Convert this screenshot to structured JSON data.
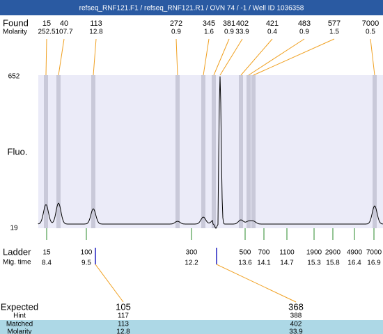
{
  "title": "refseq_RNF121.F1 / refseq_RNF121.R1 / OVN 74 / -1 / Well ID 1036358",
  "found": {
    "label": "Found",
    "sublabel": "Molarity",
    "peaks": [
      {
        "size": 15,
        "molarity": 252.5
      },
      {
        "size": 40,
        "molarity": 107.7
      },
      {
        "size": 113,
        "molarity": 12.8
      },
      {
        "size": 272,
        "molarity": 0.9
      },
      {
        "size": 345,
        "molarity": 1.6
      },
      {
        "size": 381,
        "molarity": 0.9
      },
      {
        "size": 402,
        "molarity": 33.9
      },
      {
        "size": 421,
        "molarity": 0.4
      },
      {
        "size": 483,
        "molarity": 0.9
      },
      {
        "size": 577,
        "molarity": 1.5
      },
      {
        "size": 7000,
        "molarity": 0.5
      }
    ]
  },
  "plot": {
    "ylabel": "Fluo.",
    "ymax": 652,
    "ymin": 19
  },
  "ladder": {
    "label": "Ladder",
    "sublabel": "Mig. time",
    "items": [
      {
        "size": 15,
        "time": 8.4
      },
      {
        "size": 100,
        "time": 9.5
      },
      {
        "size": 300,
        "time": 12.2
      },
      {
        "size": 500,
        "time": 13.6
      },
      {
        "size": 700,
        "time": 14.1
      },
      {
        "size": 1100,
        "time": 14.7
      },
      {
        "size": 1900,
        "time": 15.3
      },
      {
        "size": 2900,
        "time": 15.8
      },
      {
        "size": 4900,
        "time": 16.4
      },
      {
        "size": 7000,
        "time": 16.9
      }
    ]
  },
  "expected": {
    "labels": [
      "Expected",
      "Hint",
      "Matched",
      "Molarity"
    ],
    "columns": [
      {
        "expected": 105,
        "hint": 117,
        "matched": 113,
        "molarity": 12.8
      },
      {
        "expected": 368,
        "hint": 388,
        "matched": 402,
        "molarity": 33.9
      }
    ]
  }
}
